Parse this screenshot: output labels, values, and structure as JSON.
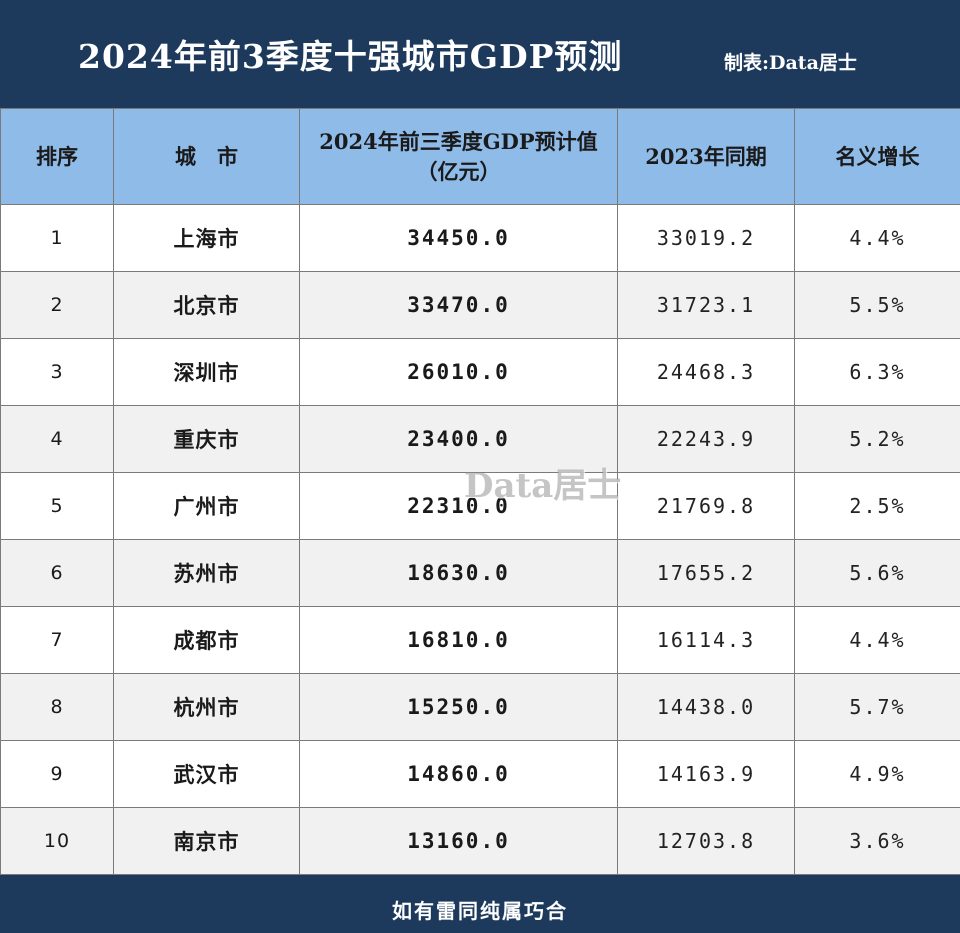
{
  "title": "2024年前3季度十强城市GDP预测",
  "credit": "制表:Data居士",
  "watermark": "Data居士",
  "footer": "如有雷同纯属巧合",
  "colors": {
    "header_bar": "#1d3a5c",
    "table_header": "#8fbbe8"
  },
  "chart_data": {
    "type": "table",
    "columns": [
      "排序",
      "城　市",
      "2024年前三季度GDP预计值（亿元）",
      "2023年同期",
      "名义增长"
    ],
    "rows": [
      [
        "1",
        "上海市",
        "34450.0",
        "33019.2",
        "4.4%"
      ],
      [
        "2",
        "北京市",
        "33470.0",
        "31723.1",
        "5.5%"
      ],
      [
        "3",
        "深圳市",
        "26010.0",
        "24468.3",
        "6.3%"
      ],
      [
        "4",
        "重庆市",
        "23400.0",
        "22243.9",
        "5.2%"
      ],
      [
        "5",
        "广州市",
        "22310.0",
        "21769.8",
        "2.5%"
      ],
      [
        "6",
        "苏州市",
        "18630.0",
        "17655.2",
        "5.6%"
      ],
      [
        "7",
        "成都市",
        "16810.0",
        "16114.3",
        "4.4%"
      ],
      [
        "8",
        "杭州市",
        "15250.0",
        "14438.0",
        "5.7%"
      ],
      [
        "9",
        "武汉市",
        "14860.0",
        "14163.9",
        "4.9%"
      ],
      [
        "10",
        "南京市",
        "13160.0",
        "12703.8",
        "3.6%"
      ]
    ]
  }
}
